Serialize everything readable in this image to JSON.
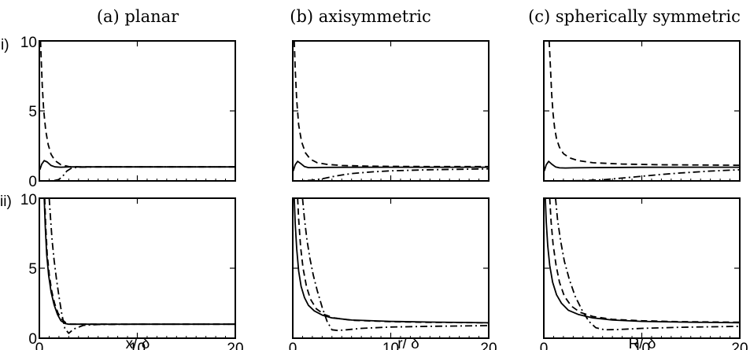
{
  "chart_data": {
    "type": "line",
    "column_titles": [
      "(a) planar",
      "(b) axisymmetric",
      "(c) spherically symmetric"
    ],
    "row_labels": [
      "i)",
      "ii)"
    ],
    "xlabels": [
      "x/ δ",
      "r/ δ",
      "R/ δ"
    ],
    "xlim": [
      0,
      20
    ],
    "ylim": [
      0,
      10
    ],
    "xticks": [
      0,
      10,
      20
    ],
    "yticks": [
      0,
      5,
      10
    ],
    "xtick_labels": [
      "0",
      "10",
      "20"
    ],
    "ytick_labels": [
      "0",
      "5",
      "10"
    ],
    "panels": [
      {
        "row": 0,
        "col": 0,
        "series": [
          {
            "style": "solid",
            "x": [
              0.05,
              0.25,
              0.5,
              0.8,
              1.2,
              1.6,
              2.2,
              3,
              4,
              6,
              10,
              20
            ],
            "y": [
              0.8,
              1.2,
              1.45,
              1.35,
              1.1,
              1.0,
              0.98,
              1.0,
              1.0,
              1.0,
              1.0,
              1.0
            ]
          },
          {
            "style": "dashed",
            "x": [
              0.12,
              0.2,
              0.3,
              0.45,
              0.65,
              0.9,
              1.2,
              1.6,
              2.2,
              3,
              4,
              6,
              20
            ],
            "y": [
              10,
              8.5,
              6.8,
              5.0,
              3.6,
              2.6,
              1.9,
              1.45,
              1.15,
              1.02,
              1.0,
              1.0,
              1.0
            ]
          },
          {
            "style": "dashdot",
            "x": [
              0,
              0.5,
              1,
              1.5,
              2.0,
              2.4,
              2.8,
              3.3,
              4,
              6,
              20
            ],
            "y": [
              0,
              0,
              0.0,
              0.02,
              0.1,
              0.35,
              0.7,
              0.92,
              0.98,
              1.0,
              1.0
            ]
          }
        ]
      },
      {
        "row": 0,
        "col": 1,
        "series": [
          {
            "style": "solid",
            "x": [
              0.05,
              0.25,
              0.5,
              0.8,
              1.2,
              1.6,
              2.2,
              3,
              5,
              10,
              20
            ],
            "y": [
              0.7,
              1.15,
              1.4,
              1.25,
              1.02,
              0.95,
              0.95,
              0.96,
              0.97,
              0.98,
              0.98
            ]
          },
          {
            "style": "dashed",
            "x": [
              0.15,
              0.25,
              0.4,
              0.6,
              0.9,
              1.3,
              1.8,
              2.5,
              3.5,
              5,
              8,
              12,
              20
            ],
            "y": [
              10,
              8,
              5.8,
              4.0,
              2.8,
              2.0,
              1.55,
              1.3,
              1.18,
              1.1,
              1.05,
              1.03,
              1.02
            ]
          },
          {
            "style": "dashdot",
            "x": [
              0,
              1,
              2,
              3,
              4,
              5,
              6,
              8,
              10,
              14,
              20
            ],
            "y": [
              0,
              0.01,
              0.05,
              0.15,
              0.3,
              0.42,
              0.52,
              0.64,
              0.72,
              0.8,
              0.86
            ]
          }
        ]
      },
      {
        "row": 0,
        "col": 2,
        "series": [
          {
            "style": "solid",
            "x": [
              0.05,
              0.25,
              0.5,
              0.8,
              1.2,
              1.6,
              2.2,
              3,
              5,
              10,
              20
            ],
            "y": [
              0.7,
              1.15,
              1.4,
              1.2,
              1.0,
              0.93,
              0.92,
              0.93,
              0.95,
              0.97,
              0.98
            ]
          },
          {
            "style": "dashed",
            "x": [
              0.55,
              0.65,
              0.8,
              0.95,
              1.1,
              1.3,
              1.6,
              2.0,
              2.6,
              3.5,
              5,
              8,
              12,
              20
            ],
            "y": [
              10,
              8.5,
              6.2,
              4.8,
              3.8,
              3.0,
              2.4,
              1.95,
              1.65,
              1.45,
              1.3,
              1.2,
              1.15,
              1.12
            ]
          },
          {
            "style": "dashdot",
            "x": [
              0,
              2,
              4,
              6,
              8,
              10,
              12,
              14,
              17,
              20
            ],
            "y": [
              0,
              0,
              0.02,
              0.08,
              0.2,
              0.33,
              0.46,
              0.57,
              0.7,
              0.8
            ]
          }
        ]
      },
      {
        "row": 1,
        "col": 0,
        "series": [
          {
            "style": "solid",
            "x": [
              0.5,
              0.6,
              0.75,
              0.95,
              1.2,
              1.5,
              1.85,
              2.2,
              2.6,
              3,
              4,
              6,
              10,
              20
            ],
            "y": [
              10,
              8,
              6,
              4.5,
              3.3,
              2.4,
              1.7,
              1.25,
              1.05,
              1.0,
              1.0,
              1.0,
              1.0,
              1.0
            ]
          },
          {
            "style": "dashed",
            "x": [
              0.55,
              0.65,
              0.8,
              1.0,
              1.25,
              1.55,
              1.9,
              2.3,
              2.7,
              3.2,
              4,
              6,
              10,
              20
            ],
            "y": [
              10,
              8,
              6,
              4.6,
              3.4,
              2.5,
              1.8,
              1.35,
              1.1,
              1.0,
              1.0,
              1.0,
              1.0,
              1.0
            ]
          },
          {
            "style": "dashdot",
            "x": [
              1.0,
              1.15,
              1.3,
              1.5,
              1.75,
              2.0,
              2.3,
              2.6,
              3.0,
              3.5,
              4.5,
              6,
              10,
              20
            ],
            "y": [
              10,
              8.5,
              7,
              5.6,
              4.2,
              3.0,
              1.7,
              0.7,
              0.35,
              0.65,
              0.92,
              0.98,
              1.0,
              1.0
            ]
          }
        ]
      },
      {
        "row": 1,
        "col": 1,
        "series": [
          {
            "style": "solid",
            "x": [
              0.15,
              0.25,
              0.4,
              0.6,
              0.85,
              1.2,
              1.6,
              2.2,
              3,
              4,
              6,
              10,
              14,
              20
            ],
            "y": [
              10,
              8.2,
              6.4,
              4.8,
              3.7,
              2.9,
              2.35,
              1.95,
              1.65,
              1.45,
              1.3,
              1.2,
              1.15,
              1.1
            ]
          },
          {
            "style": "dashed",
            "x": [
              0.5,
              0.6,
              0.8,
              1.05,
              1.4,
              1.8,
              2.4,
              3.2,
              4.2,
              6,
              10,
              14,
              20
            ],
            "y": [
              10,
              8.5,
              6.5,
              5.0,
              3.7,
              2.8,
              2.1,
              1.7,
              1.45,
              1.28,
              1.18,
              1.13,
              1.1
            ]
          },
          {
            "style": "dashdot",
            "x": [
              1.0,
              1.2,
              1.45,
              1.75,
              2.1,
              2.5,
              3.0,
              3.5,
              4.0,
              4.6,
              5.5,
              7,
              10,
              14,
              20
            ],
            "y": [
              10,
              8.5,
              7,
              5.7,
              4.5,
              3.4,
              2.2,
              1.2,
              0.6,
              0.55,
              0.6,
              0.7,
              0.8,
              0.85,
              0.9
            ]
          }
        ]
      },
      {
        "row": 1,
        "col": 2,
        "series": [
          {
            "style": "solid",
            "x": [
              0.15,
              0.25,
              0.4,
              0.6,
              0.9,
              1.3,
              1.8,
              2.5,
              3.5,
              5,
              7,
              10,
              14,
              20
            ],
            "y": [
              10,
              8.3,
              6.6,
              5.2,
              4.0,
              3.1,
              2.5,
              2.0,
              1.7,
              1.45,
              1.3,
              1.2,
              1.15,
              1.1
            ]
          },
          {
            "style": "dashed",
            "x": [
              0.6,
              0.75,
              0.95,
              1.25,
              1.6,
              2.1,
              2.8,
              3.7,
              5,
              7,
              10,
              14,
              20
            ],
            "y": [
              10,
              8.3,
              6.7,
              5.2,
              4.0,
              3.0,
              2.3,
              1.85,
              1.55,
              1.35,
              1.25,
              1.18,
              1.14
            ]
          },
          {
            "style": "dashdot",
            "x": [
              1.2,
              1.4,
              1.7,
              2.1,
              2.6,
              3.2,
              3.9,
              4.6,
              5.3,
              6.2,
              7.5,
              10,
              14,
              20
            ],
            "y": [
              10,
              8.5,
              7.0,
              5.5,
              4.2,
              3.0,
              2.0,
              1.2,
              0.75,
              0.6,
              0.62,
              0.7,
              0.78,
              0.85
            ]
          }
        ]
      }
    ]
  }
}
